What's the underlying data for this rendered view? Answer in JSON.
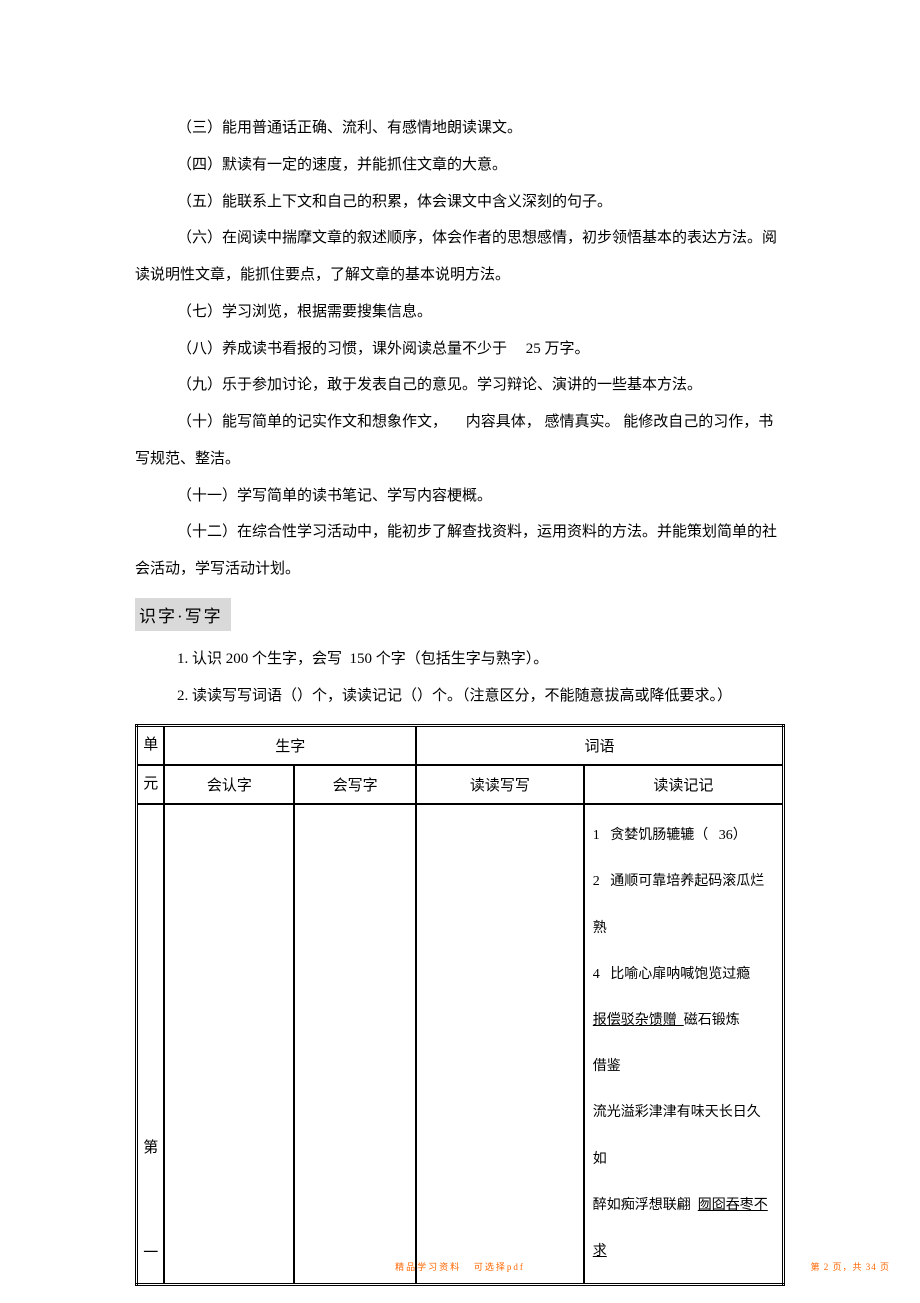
{
  "paragraphs": {
    "p3": "（三）能用普通话正确、流利、有感情地朗读课文。",
    "p4": "（四）默读有一定的速度，并能抓住文章的大意。",
    "p5": "（五）能联系上下文和自己的积累，体会课文中含义深刻的句子。",
    "p6": "（六）在阅读中揣摩文章的叙述顺序，体会作者的思想感情，初步领悟基本的表达方法。阅读说明性文章，能抓住要点，了解文章的基本说明方法。",
    "p7": "（七）学习浏览，根据需要搜集信息。",
    "p8_a": "（八）养成读书看报的习惯，课外阅读总量不少于  ",
    "p8_b": "25 万字。",
    "p9": "（九）乐于参加讨论，敢于发表自己的意见。学习辩论、演讲的一些基本方法。",
    "p10": "（十）能写简单的记实作文和想象作文，  内容具体， 感情真实。 能修改自己的习作，书写规范、整洁。",
    "p11": "（十一）学写简单的读书笔记、学写内容梗概。",
    "p12": "（十二）在综合性学习活动中，能初步了解查找资料，运用资料的方法。并能策划简单的社会活动，学写活动计划。"
  },
  "section_heading": "识字·写字",
  "list_items": {
    "item1_a": "1. 认识 200 个生字，会写 ",
    "item1_b": "150 个字（包括生字与熟字）。",
    "item2": "2. 读读写写词语（）个，读读记记（）个。（注意区分，不能随意拔高或降低要求。）"
  },
  "table": {
    "headers": {
      "unit1": "单",
      "unit2": "元",
      "shengzi": "生字",
      "ciyu": "词语",
      "huirenzi": "会认字",
      "huixiezi": "会写字",
      "duduxiexie": "读读写写",
      "dudujiji": "读读记记"
    },
    "row1": {
      "unit_a": "第",
      "unit_b": "一",
      "cell4_l1": "1  贪婪饥肠辘辘（  36）",
      "cell4_l2": "2  通顺可靠培养起码滚瓜烂熟",
      "cell4_l3": "4  比喻心扉呐喊饱览过瘾",
      "cell4_l4a": "报偿驳杂馈赠 ",
      "cell4_l4b": "磁石锻炼",
      "cell4_l5": "借鉴",
      "cell4_l6": "流光溢彩津津有味天长日久如",
      "cell4_l7a": "醉如痴浮想联翩 ",
      "cell4_l7b": "囫囵吞枣不求"
    }
  },
  "footer": {
    "left_a": "精品学习资料",
    "left_b": "可选择pdf",
    "right": "第 2 页，共 34 页"
  }
}
